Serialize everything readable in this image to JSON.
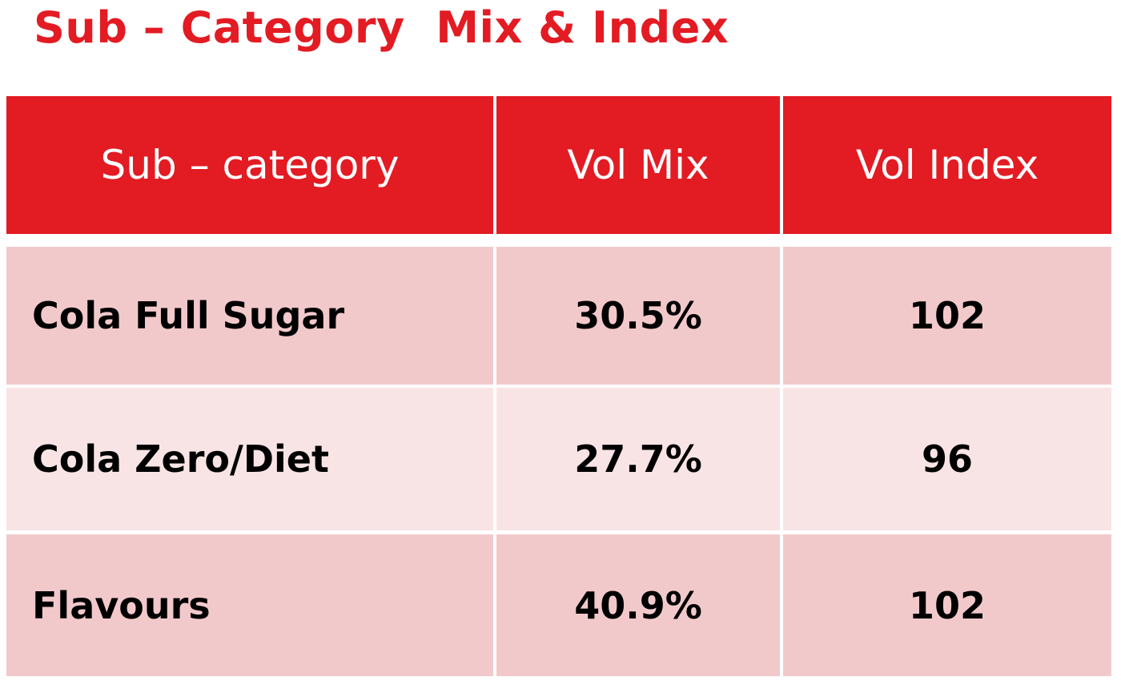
{
  "title": "Sub – Category  Mix & Index",
  "colors": {
    "accent": "#e31b23",
    "row_dark": "#f2c9cb",
    "row_light": "#f9e4e5"
  },
  "chart_data": {
    "type": "table",
    "title": "Sub – Category  Mix & Index",
    "columns": [
      "Sub – category",
      "Vol Mix",
      "Vol Index"
    ],
    "rows": [
      [
        "Cola Full Sugar",
        "30.5%",
        "102"
      ],
      [
        "Cola Zero/Diet",
        "27.7%",
        "96"
      ],
      [
        "Flavours",
        "40.9%",
        "102"
      ]
    ]
  }
}
